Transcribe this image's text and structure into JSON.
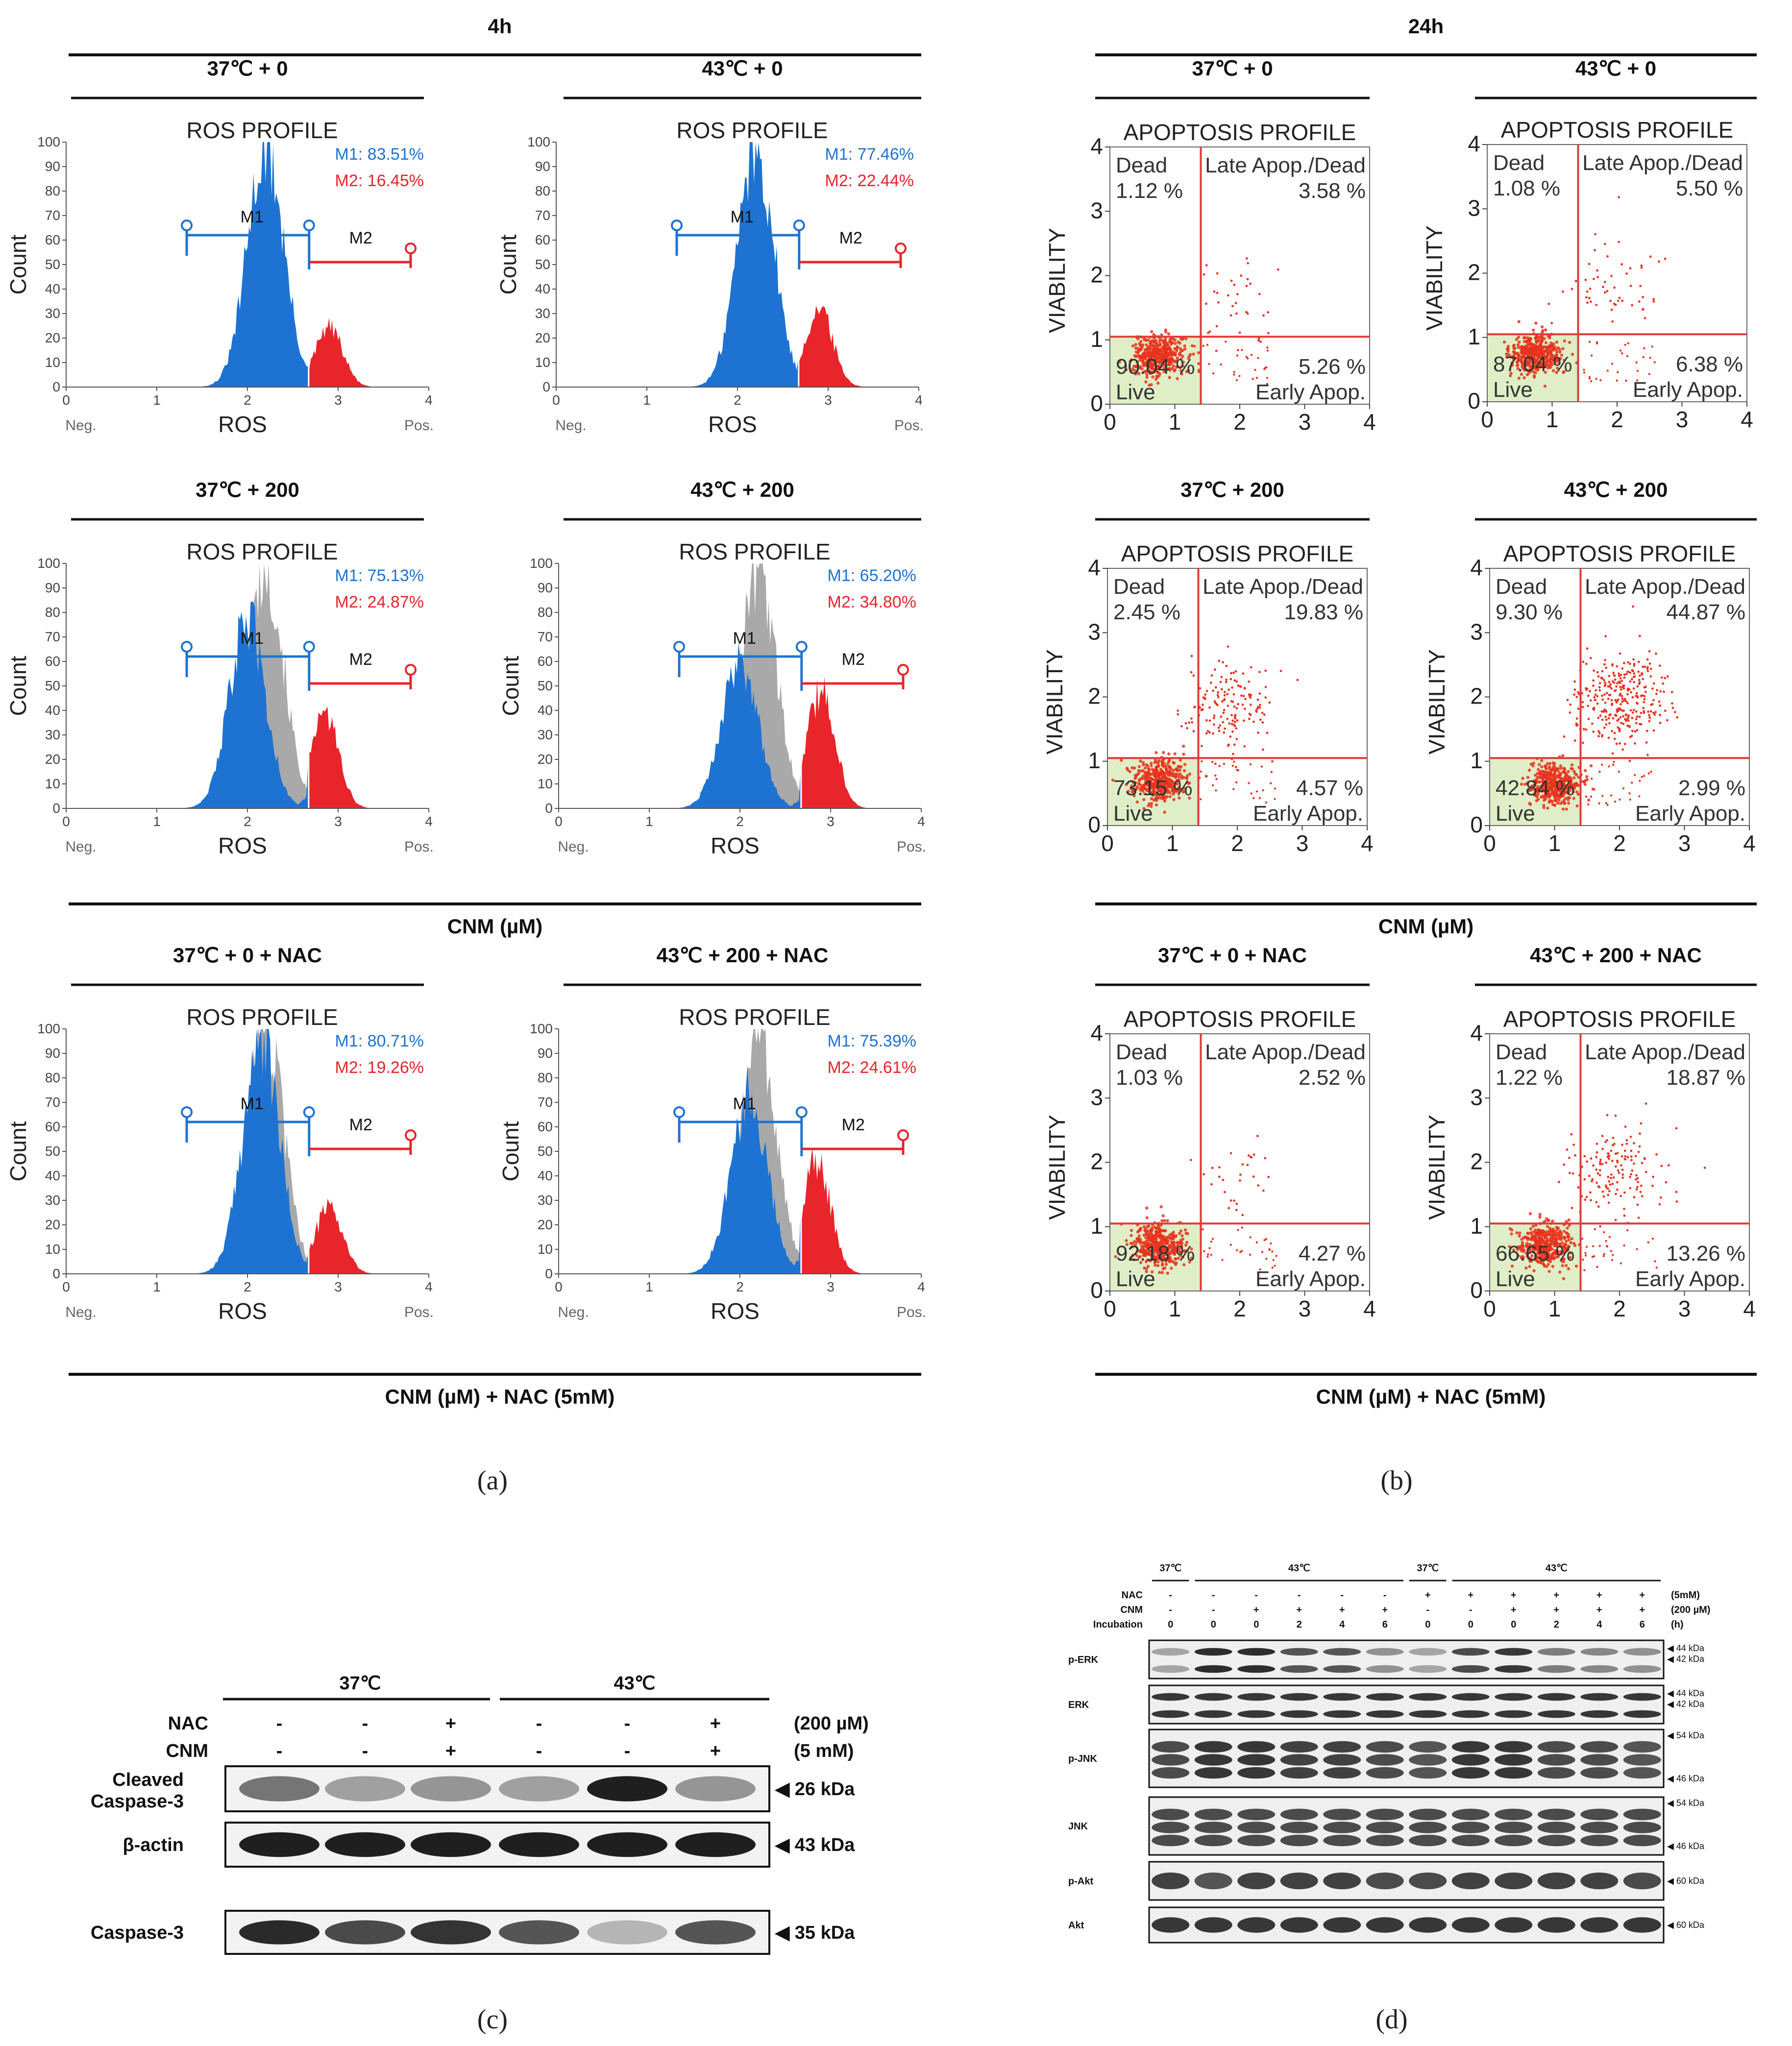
{
  "figure": {
    "panel_a_title": "4h",
    "panel_b_title": "24h",
    "cnm_label": "CNM (µM)",
    "cnm_nac_label": "CNM (µM) + NAC (5mM)",
    "captions": [
      "(a)",
      "(b)",
      "(c)",
      "(d)"
    ]
  },
  "chart_data": [
    {
      "type": "area",
      "panel": "a",
      "title": "ROS PROFILE",
      "condition": "37℃ + 0",
      "xlabel": "ROS",
      "ylabel": "Count",
      "xlim": [
        0,
        4
      ],
      "ylim": [
        0,
        100
      ],
      "xticks": [
        "0",
        "1",
        "2",
        "3",
        "4"
      ],
      "yticks": [
        "0",
        "10",
        "20",
        "30",
        "40",
        "50",
        "60",
        "70",
        "80",
        "90",
        "100"
      ],
      "x_end_labels": {
        "neg": "Neg.",
        "pos": "Pos."
      },
      "markers": {
        "m1_label": "M1",
        "m2_label": "M2",
        "m1_text": "M1: 83.51%",
        "m2_text": "M2: 16.45%",
        "m1": 83.51,
        "m2": 16.45
      },
      "peak1": {
        "center": 2.2,
        "height": 100
      },
      "peak2": {
        "center": 2.9,
        "height": 25
      },
      "control_overlay": false
    },
    {
      "type": "area",
      "panel": "a",
      "title": "ROS PROFILE",
      "condition": "43℃ + 0",
      "xlabel": "ROS",
      "ylabel": "Count",
      "xlim": [
        0,
        4
      ],
      "ylim": [
        0,
        100
      ],
      "xticks": [
        "0",
        "1",
        "2",
        "3",
        "4"
      ],
      "yticks": [
        "0",
        "10",
        "20",
        "30",
        "40",
        "50",
        "60",
        "70",
        "80",
        "90",
        "100"
      ],
      "x_end_labels": {
        "neg": "Neg.",
        "pos": "Pos."
      },
      "markers": {
        "m1_label": "M1",
        "m2_label": "M2",
        "m1_text": "M1: 77.46%",
        "m2_text": "M2: 22.44%",
        "m1": 77.46,
        "m2": 22.44
      },
      "peak1": {
        "center": 2.2,
        "height": 100
      },
      "peak2": {
        "center": 2.9,
        "height": 33
      },
      "control_overlay": false
    },
    {
      "type": "area",
      "panel": "a",
      "title": "ROS PROFILE",
      "condition": "37℃ + 200",
      "xlabel": "ROS",
      "ylabel": "Count",
      "xlim": [
        0,
        4
      ],
      "ylim": [
        0,
        100
      ],
      "xticks": [
        "0",
        "1",
        "2",
        "3",
        "4"
      ],
      "yticks": [
        "0",
        "10",
        "20",
        "30",
        "40",
        "50",
        "60",
        "70",
        "80",
        "90",
        "100"
      ],
      "x_end_labels": {
        "neg": "Neg.",
        "pos": "Pos."
      },
      "markers": {
        "m1_label": "M1",
        "m2_label": "M2",
        "m1_text": "M1: 75.13%",
        "m2_text": "M2: 24.87%",
        "m1": 75.13,
        "m2": 24.87
      },
      "peak1": {
        "center": 2.0,
        "height": 78
      },
      "peak2": {
        "center": 2.85,
        "height": 40
      },
      "control_overlay": true
    },
    {
      "type": "area",
      "panel": "a",
      "title": "ROS PROFILE",
      "condition": "43℃ + 200",
      "xlabel": "ROS",
      "ylabel": "Count",
      "xlim": [
        0,
        4
      ],
      "ylim": [
        0,
        100
      ],
      "xticks": [
        "0",
        "1",
        "2",
        "3",
        "4"
      ],
      "yticks": [
        "0",
        "10",
        "20",
        "30",
        "40",
        "50",
        "60",
        "70",
        "80",
        "90",
        "100"
      ],
      "x_end_labels": {
        "neg": "Neg.",
        "pos": "Pos."
      },
      "markers": {
        "m1_label": "M1",
        "m2_label": "M2",
        "m1_text": "M1: 65.20%",
        "m2_text": "M2: 34.80%",
        "m1": 65.2,
        "m2": 34.8
      },
      "peak1": {
        "center": 2.0,
        "height": 62
      },
      "peak2": {
        "center": 2.9,
        "height": 50
      },
      "control_overlay": true
    },
    {
      "type": "area",
      "panel": "a",
      "title": "ROS PROFILE",
      "condition": "37℃ + 0 + NAC",
      "xlabel": "ROS",
      "ylabel": "Count",
      "xlim": [
        0,
        4
      ],
      "ylim": [
        0,
        100
      ],
      "xticks": [
        "0",
        "1",
        "2",
        "3",
        "4"
      ],
      "yticks": [
        "0",
        "10",
        "20",
        "30",
        "40",
        "50",
        "60",
        "70",
        "80",
        "90",
        "100"
      ],
      "x_end_labels": {
        "neg": "Neg.",
        "pos": "Pos."
      },
      "markers": {
        "m1_label": "M1",
        "m2_label": "M2",
        "m1_text": "M1: 80.71%",
        "m2_text": "M2: 19.26%",
        "m1": 80.71,
        "m2": 19.26
      },
      "peak1": {
        "center": 2.15,
        "height": 98
      },
      "peak2": {
        "center": 2.9,
        "height": 28
      },
      "control_overlay": true
    },
    {
      "type": "area",
      "panel": "a",
      "title": "ROS PROFILE",
      "condition": "43℃ + 200 + NAC",
      "xlabel": "ROS",
      "ylabel": "Count",
      "xlim": [
        0,
        4
      ],
      "ylim": [
        0,
        100
      ],
      "xticks": [
        "0",
        "1",
        "2",
        "3",
        "4"
      ],
      "yticks": [
        "0",
        "10",
        "20",
        "30",
        "40",
        "50",
        "60",
        "70",
        "80",
        "90",
        "100"
      ],
      "x_end_labels": {
        "neg": "Neg.",
        "pos": "Pos."
      },
      "markers": {
        "m1_label": "M1",
        "m2_label": "M2",
        "m1_text": "M1: 75.39%",
        "m2_text": "M2: 24.61%",
        "m1": 75.39,
        "m2": 24.61
      },
      "peak1": {
        "center": 2.1,
        "height": 75
      },
      "peak2": {
        "center": 2.85,
        "height": 48
      },
      "control_overlay": true
    },
    {
      "type": "scatter",
      "panel": "b",
      "title": "APOPTOSIS PROFILE",
      "condition": "37℃ + 0",
      "ylabel": "VIABILITY",
      "xlim": [
        0,
        4
      ],
      "ylim": [
        0,
        4
      ],
      "xticks": [
        "0",
        "1",
        "2",
        "3",
        "4"
      ],
      "yticks": [
        "0",
        "1",
        "2",
        "3",
        "4"
      ],
      "gate": {
        "x": 1.4,
        "y": 1.05
      },
      "quadrants": {
        "dead_label": "Dead",
        "dead": "1.12 %",
        "late_label": "Late Apop./Dead",
        "late": "3.58 %",
        "live_label": "Live",
        "live": "90.04 %",
        "early_label": "Early Apop.",
        "early": "5.26 %"
      },
      "cluster": {
        "x": 0.75,
        "y": 0.75
      },
      "late_points": 35,
      "late_center": {
        "x": 2.0,
        "y": 1.6
      }
    },
    {
      "type": "scatter",
      "panel": "b",
      "title": "APOPTOSIS PROFILE",
      "condition": "43℃ + 0",
      "ylabel": "VIABILITY",
      "xlim": [
        0,
        4
      ],
      "ylim": [
        0,
        4
      ],
      "xticks": [
        "0",
        "1",
        "2",
        "3",
        "4"
      ],
      "yticks": [
        "0",
        "1",
        "2",
        "3",
        "4"
      ],
      "gate": {
        "x": 1.4,
        "y": 1.05
      },
      "quadrants": {
        "dead_label": "Dead",
        "dead": "1.08 %",
        "late_label": "Late Apop./Dead",
        "late": "5.50 %",
        "live_label": "Live",
        "live": "87.04 %",
        "early_label": "Early Apop.",
        "early": "6.38 %"
      },
      "cluster": {
        "x": 0.75,
        "y": 0.75
      },
      "late_points": 55,
      "late_center": {
        "x": 2.0,
        "y": 1.8
      }
    },
    {
      "type": "scatter",
      "panel": "b",
      "title": "APOPTOSIS PROFILE",
      "condition": "37℃ + 200",
      "ylabel": "VIABILITY",
      "xlim": [
        0,
        4
      ],
      "ylim": [
        0,
        4
      ],
      "xticks": [
        "0",
        "1",
        "2",
        "3",
        "4"
      ],
      "yticks": [
        "0",
        "1",
        "2",
        "3",
        "4"
      ],
      "gate": {
        "x": 1.4,
        "y": 1.05
      },
      "quadrants": {
        "dead_label": "Dead",
        "dead": "2.45 %",
        "late_label": "Late Apop./Dead",
        "late": "19.83 %",
        "live_label": "Live",
        "live": "73.15 %",
        "early_label": "Early Apop.",
        "early": "4.57 %"
      },
      "cluster": {
        "x": 0.8,
        "y": 0.7
      },
      "late_points": 160,
      "late_center": {
        "x": 1.85,
        "y": 1.9
      }
    },
    {
      "type": "scatter",
      "panel": "b",
      "title": "APOPTOSIS PROFILE",
      "condition": "43℃ + 200",
      "ylabel": "VIABILITY",
      "xlim": [
        0,
        4
      ],
      "ylim": [
        0,
        4
      ],
      "xticks": [
        "0",
        "1",
        "2",
        "3",
        "4"
      ],
      "yticks": [
        "0",
        "1",
        "2",
        "3",
        "4"
      ],
      "gate": {
        "x": 1.4,
        "y": 1.05
      },
      "quadrants": {
        "dead_label": "Dead",
        "dead": "9.30 %",
        "late_label": "Late Apop./Dead",
        "late": "44.87 %",
        "live_label": "Live",
        "live": "42.84 %",
        "early_label": "Early Apop.",
        "early": "2.99 %"
      },
      "cluster": {
        "x": 1.0,
        "y": 0.65
      },
      "late_points": 320,
      "late_center": {
        "x": 2.0,
        "y": 2.0
      }
    },
    {
      "type": "scatter",
      "panel": "b",
      "title": "APOPTOSIS PROFILE",
      "condition": "37℃ + 0 + NAC",
      "ylabel": "VIABILITY",
      "xlim": [
        0,
        4
      ],
      "ylim": [
        0,
        4
      ],
      "xticks": [
        "0",
        "1",
        "2",
        "3",
        "4"
      ],
      "yticks": [
        "0",
        "1",
        "2",
        "3",
        "4"
      ],
      "gate": {
        "x": 1.4,
        "y": 1.05
      },
      "quadrants": {
        "dead_label": "Dead",
        "dead": "1.03 %",
        "late_label": "Late Apop./Dead",
        "late": "2.52 %",
        "live_label": "Live",
        "live": "92.18 %",
        "early_label": "Early Apop.",
        "early": "4.27 %"
      },
      "cluster": {
        "x": 0.75,
        "y": 0.7
      },
      "late_points": 30,
      "late_center": {
        "x": 1.9,
        "y": 1.8
      }
    },
    {
      "type": "scatter",
      "panel": "b",
      "title": "APOPTOSIS PROFILE",
      "condition": "43℃ + 200 + NAC",
      "ylabel": "VIABILITY",
      "xlim": [
        0,
        4
      ],
      "ylim": [
        0,
        4
      ],
      "xticks": [
        "0",
        "1",
        "2",
        "3",
        "4"
      ],
      "yticks": [
        "0",
        "1",
        "2",
        "3",
        "4"
      ],
      "gate": {
        "x": 1.4,
        "y": 1.05
      },
      "quadrants": {
        "dead_label": "Dead",
        "dead": "1.22 %",
        "late_label": "Late Apop./Dead",
        "late": "18.87 %",
        "live_label": "Live",
        "live": "66.65 %",
        "early_label": "Early Apop.",
        "early": "13.26 %"
      },
      "cluster": {
        "x": 0.85,
        "y": 0.72
      },
      "late_points": 150,
      "late_center": {
        "x": 1.95,
        "y": 1.9
      }
    }
  ],
  "blot_c": {
    "groups": [
      "37℃",
      "43℃"
    ],
    "rows": [
      {
        "name": "NAC",
        "values": [
          "-",
          "-",
          "+",
          "-",
          "-",
          "+"
        ],
        "unit": "(200 µM)"
      },
      {
        "name": "CNM",
        "values": [
          "-",
          "-",
          "+",
          "-",
          "-",
          "+"
        ],
        "unit": "(5 mM)"
      }
    ],
    "bands": [
      {
        "label_l1": "Cleaved",
        "label_l2": "Caspase-3",
        "kda": "◀ 26 kDa",
        "intensity": [
          0.55,
          0.35,
          0.4,
          0.35,
          0.95,
          0.4
        ]
      },
      {
        "label_l1": "β-actin",
        "label_l2": "",
        "kda": "◀ 43 kDa",
        "intensity": [
          0.95,
          0.95,
          0.95,
          0.95,
          0.95,
          0.95
        ]
      },
      {
        "label_l1": "Caspase-3",
        "label_l2": "",
        "kda": "◀ 35 kDa",
        "intensity": [
          0.9,
          0.75,
          0.85,
          0.7,
          0.25,
          0.7
        ]
      }
    ]
  },
  "blot_d": {
    "groups": [
      "37℃",
      "43℃",
      "37℃",
      "43℃"
    ],
    "row_labels": [
      "NAC",
      "CNM",
      "Incubation"
    ],
    "units": [
      "(5mM)",
      "(200 µM)",
      "(h)"
    ],
    "nac": [
      "-",
      "-",
      "-",
      "-",
      "-",
      "-",
      "+",
      "+",
      "+",
      "+",
      "+",
      "+"
    ],
    "cnm": [
      "-",
      "-",
      "+",
      "+",
      "+",
      "+",
      "-",
      "-",
      "+",
      "+",
      "+",
      "+"
    ],
    "incubation": [
      "0",
      "0",
      "0",
      "2",
      "4",
      "6",
      "0",
      "0",
      "0",
      "2",
      "4",
      "6"
    ],
    "blots": [
      {
        "name": "p-ERK",
        "kda": [
          "◀ 44 kDa",
          "◀ 42 kDa"
        ],
        "bands": 2,
        "intensity": [
          0.3,
          0.9,
          0.9,
          0.7,
          0.7,
          0.4,
          0.3,
          0.75,
          0.85,
          0.5,
          0.45,
          0.4
        ]
      },
      {
        "name": "ERK",
        "kda": [
          "◀ 44 kDa",
          "◀ 42 kDa"
        ],
        "bands": 2,
        "intensity": [
          0.85,
          0.85,
          0.85,
          0.85,
          0.85,
          0.85,
          0.85,
          0.85,
          0.85,
          0.85,
          0.85,
          0.85
        ]
      },
      {
        "name": "p-JNK",
        "kda": [
          "◀ 54 kDa",
          "◀ 46 kDa"
        ],
        "bands": 3,
        "intensity": [
          0.75,
          0.85,
          0.85,
          0.8,
          0.8,
          0.75,
          0.7,
          0.85,
          0.85,
          0.75,
          0.75,
          0.7
        ]
      },
      {
        "name": "JNK",
        "kda": [
          "◀ 54 kDa",
          "◀ 46 kDa"
        ],
        "bands": 3,
        "intensity": [
          0.75,
          0.75,
          0.75,
          0.75,
          0.75,
          0.75,
          0.75,
          0.75,
          0.75,
          0.75,
          0.75,
          0.75
        ]
      },
      {
        "name": "p-Akt",
        "kda": [
          "◀ 60 kDa"
        ],
        "bands": 1,
        "intensity": [
          0.8,
          0.7,
          0.8,
          0.8,
          0.8,
          0.75,
          0.75,
          0.8,
          0.8,
          0.8,
          0.8,
          0.75
        ]
      },
      {
        "name": "Akt",
        "kda": [
          "◀ 60 kDa"
        ],
        "bands": 1,
        "intensity": [
          0.85,
          0.85,
          0.85,
          0.85,
          0.85,
          0.85,
          0.85,
          0.85,
          0.85,
          0.85,
          0.85,
          0.85
        ]
      }
    ]
  },
  "colors": {
    "m1": "#1e73d2",
    "m2": "#e8252a",
    "control": "#a9a9a9",
    "gate": "#e03a3a",
    "dot": "#e8331f",
    "live_fill": "#dfeec6"
  }
}
